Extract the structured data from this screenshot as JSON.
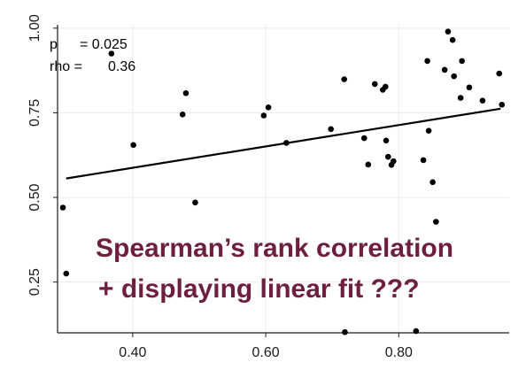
{
  "chart_data": {
    "type": "scatter",
    "title": "",
    "xlabel": "",
    "ylabel": "",
    "xlim": [
      0.287,
      0.966
    ],
    "ylim": [
      0.1,
      1.01
    ],
    "x_ticks": [
      0.4,
      0.6,
      0.8
    ],
    "x_tick_labels": [
      "0.40",
      "0.60",
      "0.80"
    ],
    "y_ticks": [
      0.25,
      0.5,
      0.75,
      1.0
    ],
    "y_tick_labels": [
      "0.25",
      "0.50",
      "0.75",
      "1.00"
    ],
    "grid": true,
    "stats": {
      "p_label": "p",
      "p_value": "= 0.025",
      "rho_label": "rho =",
      "rho_value": "0.36"
    },
    "fit_line": {
      "x": [
        0.3,
        0.953
      ],
      "y": [
        0.556,
        0.762
      ]
    },
    "points": [
      {
        "x": 0.295,
        "y": 0.47
      },
      {
        "x": 0.3,
        "y": 0.275
      },
      {
        "x": 0.368,
        "y": 0.925
      },
      {
        "x": 0.401,
        "y": 0.655
      },
      {
        "x": 0.475,
        "y": 0.745
      },
      {
        "x": 0.48,
        "y": 0.808
      },
      {
        "x": 0.494,
        "y": 0.485
      },
      {
        "x": 0.597,
        "y": 0.742
      },
      {
        "x": 0.604,
        "y": 0.766
      },
      {
        "x": 0.631,
        "y": 0.661
      },
      {
        "x": 0.698,
        "y": 0.702
      },
      {
        "x": 0.718,
        "y": 0.849
      },
      {
        "x": 0.719,
        "y": 0.102
      },
      {
        "x": 0.748,
        "y": 0.675
      },
      {
        "x": 0.754,
        "y": 0.597
      },
      {
        "x": 0.764,
        "y": 0.835
      },
      {
        "x": 0.776,
        "y": 0.818
      },
      {
        "x": 0.78,
        "y": 0.827
      },
      {
        "x": 0.781,
        "y": 0.668
      },
      {
        "x": 0.784,
        "y": 0.62
      },
      {
        "x": 0.789,
        "y": 0.596
      },
      {
        "x": 0.792,
        "y": 0.607
      },
      {
        "x": 0.826,
        "y": 0.105
      },
      {
        "x": 0.837,
        "y": 0.61
      },
      {
        "x": 0.843,
        "y": 0.903
      },
      {
        "x": 0.845,
        "y": 0.697
      },
      {
        "x": 0.851,
        "y": 0.545
      },
      {
        "x": 0.856,
        "y": 0.428
      },
      {
        "x": 0.869,
        "y": 0.877
      },
      {
        "x": 0.874,
        "y": 0.99
      },
      {
        "x": 0.881,
        "y": 0.965
      },
      {
        "x": 0.883,
        "y": 0.858
      },
      {
        "x": 0.893,
        "y": 0.794
      },
      {
        "x": 0.895,
        "y": 0.903
      },
      {
        "x": 0.906,
        "y": 0.825
      },
      {
        "x": 0.926,
        "y": 0.786
      },
      {
        "x": 0.951,
        "y": 0.866
      },
      {
        "x": 0.955,
        "y": 0.774
      }
    ]
  },
  "overlay": {
    "line1": "Spearman’s rank correlation",
    "line2": "+ displaying linear fit ???",
    "color": "#6e1f3f"
  },
  "colors": {
    "points": "#000000",
    "fit_line": "#000000",
    "grid": "#ececec",
    "axis": "#1a1a1a"
  }
}
